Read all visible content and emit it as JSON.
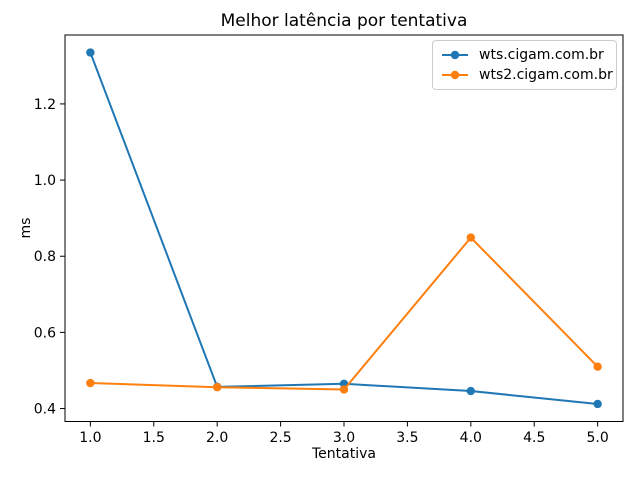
{
  "chart_data": {
    "type": "line",
    "title": "Melhor latência por tentativa",
    "xlabel": "Tentativa",
    "ylabel": "ms",
    "x": [
      1,
      2,
      3,
      4,
      5
    ],
    "series": [
      {
        "name": "wts.cigam.com.br",
        "color": "#1f77b4",
        "marker": "circle",
        "values": [
          1.335,
          0.457,
          0.465,
          0.446,
          0.412
        ]
      },
      {
        "name": "wts2.cigam.com.br",
        "color": "#ff7f0e",
        "marker": "circle",
        "values": [
          0.467,
          0.456,
          0.45,
          0.849,
          0.51
        ]
      }
    ],
    "xlim": [
      0.8,
      5.2
    ],
    "ylim": [
      0.366,
      1.381
    ],
    "xticks": [
      1.0,
      1.5,
      2.0,
      2.5,
      3.0,
      3.5,
      4.0,
      4.5,
      5.0
    ],
    "yticks": [
      0.4,
      0.6,
      0.8,
      1.0,
      1.2
    ],
    "grid": false,
    "legend_position": "upper right",
    "background_color": "#ffffff",
    "spine_color": "#000000",
    "legend_border_color": "#cccccc"
  }
}
